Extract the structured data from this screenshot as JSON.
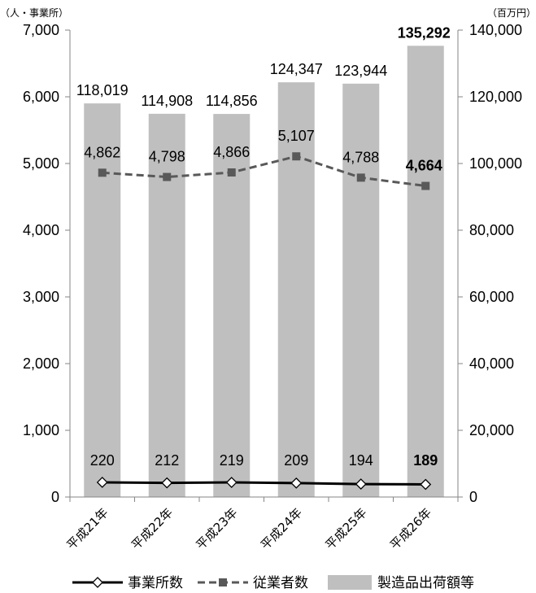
{
  "chart_data": {
    "type": "bar",
    "categories": [
      "平成21年",
      "平成22年",
      "平成23年",
      "平成24年",
      "平成25年",
      "平成26年"
    ],
    "left_unit": "（人・事業所）",
    "right_unit": "（百万円）",
    "left_axis": {
      "min": 0,
      "max": 7000,
      "step": 1000,
      "tick_labels": [
        "0",
        "1,000",
        "2,000",
        "3,000",
        "4,000",
        "5,000",
        "6,000",
        "7,000"
      ]
    },
    "right_axis": {
      "min": 0,
      "max": 140000,
      "step": 20000,
      "tick_labels": [
        "0",
        "20,000",
        "40,000",
        "60,000",
        "80,000",
        "100,000",
        "120,000",
        "140,000"
      ]
    },
    "series": [
      {
        "name": "製造品出荷額等",
        "kind": "bar",
        "axis": "right",
        "color": "#bfbfbf",
        "values": [
          118019,
          114908,
          114856,
          124347,
          123944,
          135292
        ],
        "labels": [
          "118,019",
          "114,908",
          "114,856",
          "124,347",
          "123,944",
          "135,292"
        ]
      },
      {
        "name": "従業者数",
        "kind": "line",
        "axis": "left",
        "color": "#595959",
        "dash": true,
        "marker": "square",
        "values": [
          4862,
          4798,
          4866,
          5107,
          4788,
          4664
        ],
        "labels": [
          "4,862",
          "4,798",
          "4,866",
          "5,107",
          "4,788",
          "4,664"
        ]
      },
      {
        "name": "事業所数",
        "kind": "line",
        "axis": "left",
        "color": "#000000",
        "dash": false,
        "marker": "diamond",
        "values": [
          220,
          212,
          219,
          209,
          194,
          189
        ],
        "labels": [
          "220",
          "212",
          "219",
          "209",
          "194",
          "189"
        ]
      }
    ],
    "legend": {
      "placement": "bottom",
      "items": [
        "事業所数",
        "従業者数",
        "製造品出荷額等"
      ]
    },
    "grid": false
  }
}
